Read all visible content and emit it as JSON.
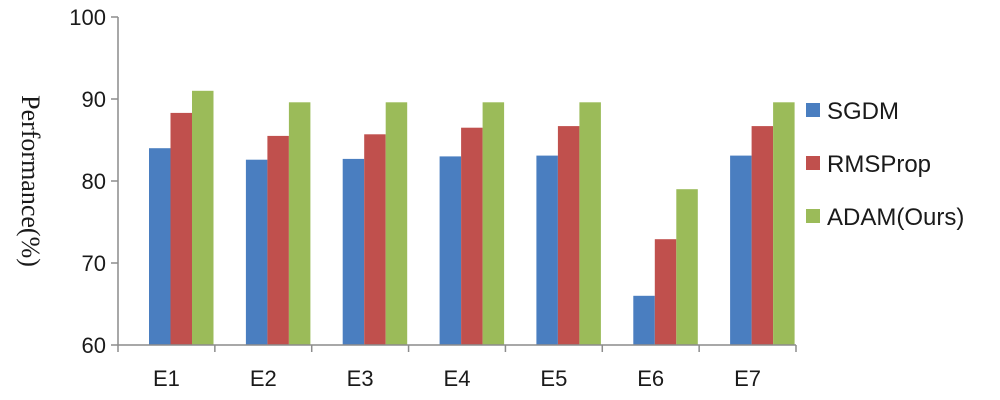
{
  "chart_data": {
    "type": "bar",
    "categories": [
      "E1",
      "E2",
      "E3",
      "E4",
      "E5",
      "E6",
      "E7"
    ],
    "series": [
      {
        "name": "SGDM",
        "color": "#4a7ec0",
        "values": [
          84.0,
          82.6,
          82.7,
          83.0,
          83.1,
          66.0,
          83.1
        ]
      },
      {
        "name": "RMSProp",
        "color": "#c0504d",
        "values": [
          88.3,
          85.5,
          85.7,
          86.5,
          86.7,
          72.9,
          86.7
        ]
      },
      {
        "name": "ADAM(Ours)",
        "color": "#9bbb59",
        "values": [
          91.0,
          89.6,
          89.6,
          89.6,
          89.6,
          79.0,
          89.6
        ]
      }
    ],
    "title": "",
    "xlabel": "",
    "ylabel": "Performance(%)",
    "ylim": [
      60,
      100
    ],
    "yticks": [
      60,
      70,
      80,
      90,
      100
    ],
    "grid": false,
    "legend_position": "right"
  }
}
